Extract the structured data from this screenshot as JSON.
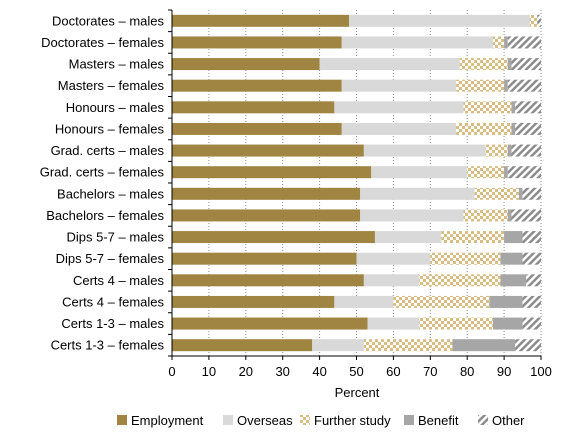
{
  "chart_data": {
    "type": "bar",
    "orientation": "horizontal",
    "stacked": true,
    "categories": [
      "Doctorates – males",
      "Doctorates – females",
      "Masters – males",
      "Masters – females",
      "Honours – males",
      "Honours – females",
      "Grad. certs – males",
      "Grad. certs – females",
      "Bachelors – males",
      "Bachelors – females",
      "Dips 5-7 – males",
      "Dips 5-7 – females",
      "Certs 4 – males",
      "Certs 4 – females",
      "Certs 1-3 – males",
      "Certs 1-3 – females"
    ],
    "series": [
      {
        "name": "Employment",
        "color": "#a08442",
        "pattern": "solid",
        "values": [
          48,
          46,
          40,
          46,
          44,
          46,
          52,
          54,
          51,
          51,
          55,
          50,
          52,
          44,
          53,
          38
        ]
      },
      {
        "name": "Overseas",
        "color": "#d9d9d9",
        "pattern": "solid",
        "values": [
          49,
          41,
          38,
          31,
          35,
          31,
          33,
          26,
          31,
          28,
          18,
          20,
          15,
          16,
          14,
          14
        ]
      },
      {
        "name": "Further study",
        "color": "#d8bd83",
        "pattern": "checker",
        "values": [
          2,
          3,
          13,
          13,
          13,
          15,
          6,
          10,
          12,
          12,
          17,
          19,
          22,
          26,
          20,
          24
        ]
      },
      {
        "name": "Benefit",
        "color": "#a6a6a6",
        "pattern": "solid",
        "values": [
          0,
          1,
          1,
          1,
          1,
          1,
          1,
          1,
          1,
          1,
          5,
          6,
          7,
          9,
          8,
          17
        ]
      },
      {
        "name": "Other",
        "color": "#a6a6a6",
        "pattern": "diagonal",
        "values": [
          1,
          9,
          8,
          9,
          7,
          7,
          8,
          9,
          5,
          8,
          5,
          5,
          4,
          5,
          5,
          7
        ]
      }
    ],
    "xlabel": "Percent",
    "ylabel": "",
    "xlim": [
      0,
      100
    ],
    "xticks": [
      0,
      10,
      20,
      30,
      40,
      50,
      60,
      70,
      80,
      90,
      100
    ],
    "grid": "vertical dotted",
    "legend": "bottom"
  }
}
